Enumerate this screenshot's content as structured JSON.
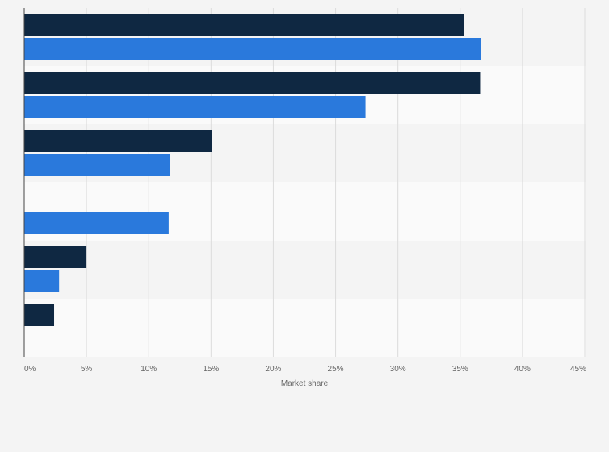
{
  "chart_data": {
    "type": "bar",
    "orientation": "horizontal",
    "title": "",
    "xlabel": "Market share",
    "ylabel": "",
    "xlim": [
      0,
      45
    ],
    "x_ticks": [
      "0%",
      "5%",
      "10%",
      "15%",
      "20%",
      "25%",
      "30%",
      "35%",
      "40%",
      "45%"
    ],
    "grid": true,
    "legend": "none",
    "categories": [
      "",
      "",
      "",
      "",
      "",
      ""
    ],
    "series": [
      {
        "color": "#0f2842",
        "values": [
          35.3,
          36.6,
          15.1,
          null,
          5.0,
          2.4
        ]
      },
      {
        "color": "#2a79dc",
        "values": [
          36.7,
          27.4,
          11.7,
          11.6,
          2.8,
          null
        ]
      }
    ]
  }
}
